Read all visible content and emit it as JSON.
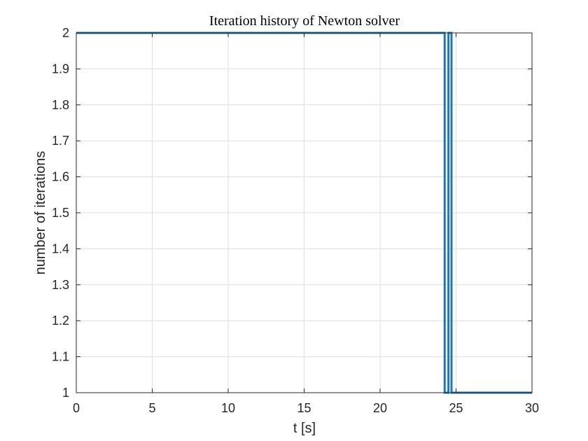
{
  "chart_data": {
    "type": "line",
    "title": "Iteration history of Newton solver",
    "xlabel": "t [s]",
    "ylabel": "number of iterations",
    "xlim": [
      0,
      30
    ],
    "ylim": [
      1,
      2
    ],
    "xticks": [
      0,
      5,
      10,
      15,
      20,
      25,
      30
    ],
    "xtick_labels": [
      "0",
      "5",
      "10",
      "15",
      "20",
      "25",
      "30"
    ],
    "yticks": [
      1,
      1.1,
      1.2,
      1.3,
      1.4,
      1.5,
      1.6,
      1.7,
      1.8,
      1.9,
      2
    ],
    "ytick_labels": [
      "1",
      "1.1",
      "1.2",
      "1.3",
      "1.4",
      "1.5",
      "1.6",
      "1.7",
      "1.8",
      "1.9",
      "2"
    ],
    "grid": true,
    "line_color": "#1f77b4",
    "series": [
      {
        "x": [
          0,
          24.25,
          24.25,
          24.5,
          24.5,
          24.7,
          24.7,
          30
        ],
        "y": [
          2,
          2,
          1,
          1,
          2,
          2,
          1,
          1
        ]
      }
    ]
  }
}
